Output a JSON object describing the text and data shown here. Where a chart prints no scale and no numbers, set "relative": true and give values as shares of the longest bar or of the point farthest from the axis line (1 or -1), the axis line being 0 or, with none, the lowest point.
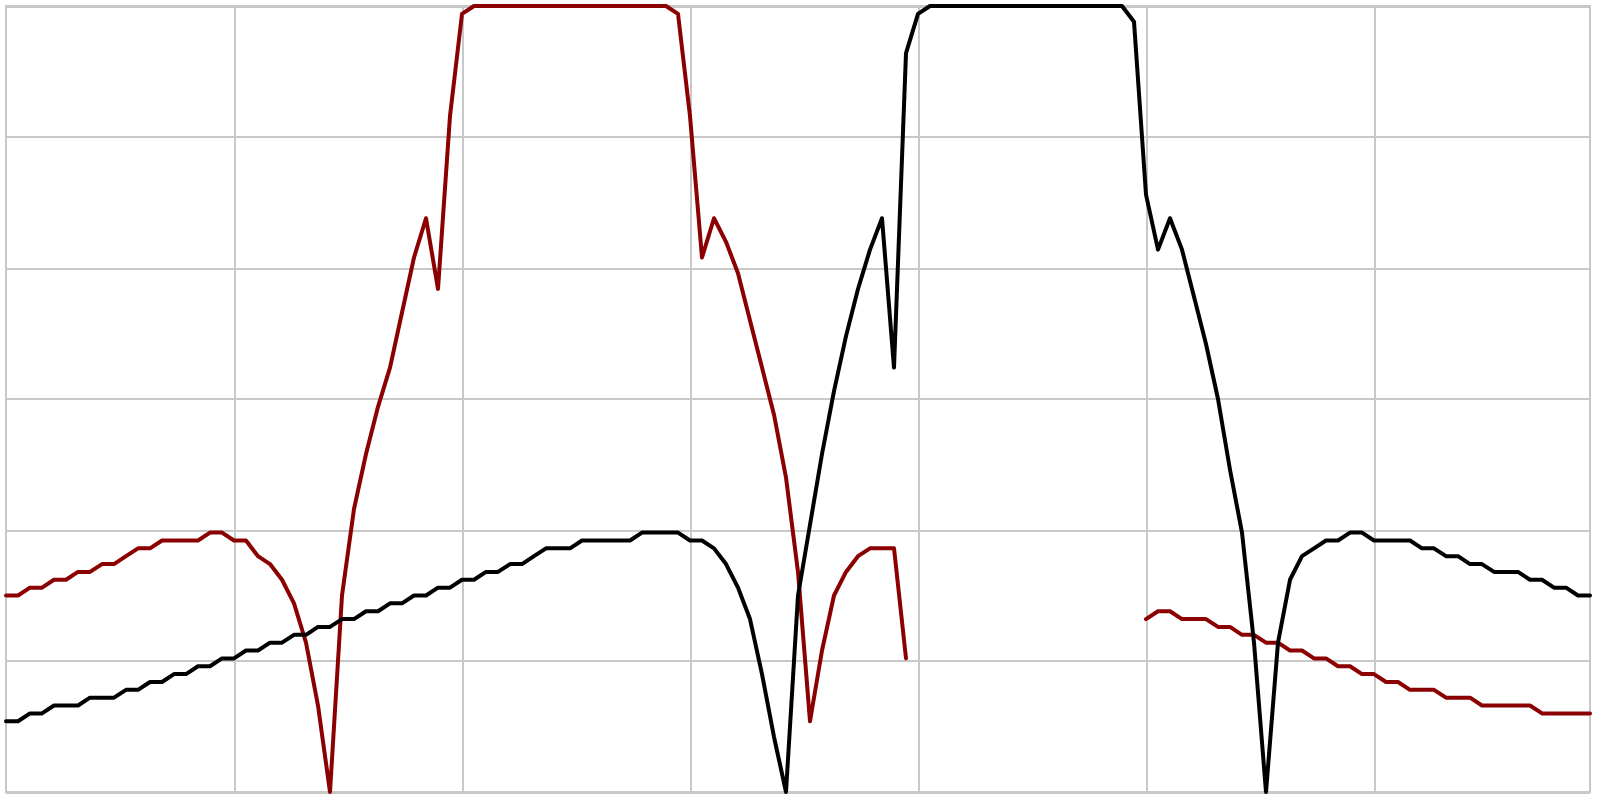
{
  "chart_data": {
    "type": "line",
    "relative": true,
    "grid": true,
    "line_style": "solid",
    "categories": [
      null,
      null,
      null,
      null,
      null,
      null,
      null,
      null,
      null,
      null,
      null,
      null,
      null,
      null,
      null,
      null,
      null,
      null,
      null,
      null,
      null,
      null,
      null,
      null,
      null,
      null,
      null,
      null,
      null,
      null,
      null,
      null,
      null,
      null,
      null,
      null,
      null,
      null,
      null,
      null,
      null,
      null,
      null,
      null,
      null,
      null,
      null,
      null,
      null,
      null,
      null,
      null,
      null,
      null,
      null,
      null,
      null,
      null,
      null,
      null,
      null,
      null,
      null,
      null,
      null,
      null,
      null,
      null,
      null,
      null,
      null,
      null,
      null,
      null,
      null,
      null,
      null,
      null,
      null,
      null,
      null,
      null,
      null,
      null,
      null,
      null,
      null,
      null,
      null,
      null,
      null,
      null,
      null,
      null,
      null,
      null,
      null,
      null,
      null,
      null,
      null,
      null,
      null,
      null,
      null,
      null,
      null,
      null,
      null,
      null,
      null,
      null,
      null,
      null,
      null,
      null,
      null,
      null,
      null,
      null,
      null,
      null,
      null,
      null,
      null,
      null,
      null,
      null,
      null,
      null,
      null,
      null,
      null
    ],
    "series": [
      {
        "color": "#8b0000",
        "values": [
          0.25,
          0.25,
          0.26,
          0.26,
          0.27,
          0.27,
          0.28,
          0.28,
          0.29,
          0.29,
          0.3,
          0.31,
          0.31,
          0.32,
          0.32,
          0.32,
          0.32,
          0.33,
          0.33,
          0.32,
          0.32,
          0.3,
          0.29,
          0.27,
          0.24,
          0.19,
          0.11,
          0,
          0.25,
          0.36,
          0.43,
          0.49,
          0.54,
          0.61,
          0.68,
          0.73,
          0.64,
          0.86,
          0.99,
          1.0,
          1.0,
          1.0,
          1.0,
          1.0,
          1.0,
          1.0,
          1.0,
          1.0,
          1.0,
          1.0,
          1.0,
          1.0,
          1.0,
          1.0,
          1.0,
          1.0,
          0.99,
          0.86,
          0.68,
          0.73,
          0.7,
          0.66,
          0.6,
          0.54,
          0.48,
          0.4,
          0.28,
          0.09,
          0.18,
          0.25,
          0.28,
          0.3,
          0.31,
          0.31,
          0.31,
          0.17,
          null,
          null,
          null,
          null,
          null,
          null,
          null,
          null,
          null,
          null,
          null,
          null,
          null,
          null,
          null,
          null,
          null,
          null,
          null,
          0.22,
          0.23,
          0.23,
          0.22,
          0.22,
          0.22,
          0.21,
          0.21,
          0.2,
          0.2,
          0.19,
          0.19,
          0.18,
          0.18,
          0.17,
          0.17,
          0.16,
          0.16,
          0.15,
          0.15,
          0.14,
          0.14,
          0.13,
          0.13,
          0.13,
          0.12,
          0.12,
          0.12,
          0.11,
          0.11,
          0.11,
          0.11,
          0.11,
          0.1,
          0.1,
          0.1,
          0.1,
          0.1
        ]
      },
      {
        "color": "#000000",
        "values": [
          0.09,
          0.09,
          0.1,
          0.1,
          0.11,
          0.11,
          0.11,
          0.12,
          0.12,
          0.12,
          0.13,
          0.13,
          0.14,
          0.14,
          0.15,
          0.15,
          0.16,
          0.16,
          0.17,
          0.17,
          0.18,
          0.18,
          0.19,
          0.19,
          0.2,
          0.2,
          0.21,
          0.21,
          0.22,
          0.22,
          0.23,
          0.23,
          0.24,
          0.24,
          0.25,
          0.25,
          0.26,
          0.26,
          0.27,
          0.27,
          0.28,
          0.28,
          0.29,
          0.29,
          0.3,
          0.31,
          0.31,
          0.31,
          0.32,
          0.32,
          0.32,
          0.32,
          0.32,
          0.33,
          0.33,
          0.33,
          0.33,
          0.32,
          0.32,
          0.31,
          0.29,
          0.26,
          0.22,
          0.15,
          0.07,
          0,
          0.25,
          0.34,
          0.43,
          0.51,
          0.58,
          0.64,
          0.69,
          0.73,
          0.54,
          0.94,
          0.99,
          1.0,
          1.0,
          1.0,
          1.0,
          1.0,
          1.0,
          1.0,
          1.0,
          1.0,
          1.0,
          1.0,
          1.0,
          1.0,
          1.0,
          1.0,
          1.0,
          1.0,
          0.98,
          0.76,
          0.69,
          0.73,
          0.69,
          0.63,
          0.57,
          0.5,
          0.41,
          0.33,
          0.19,
          0,
          0.19,
          0.27,
          0.3,
          0.31,
          0.32,
          0.32,
          0.33,
          0.33,
          0.32,
          0.32,
          0.32,
          0.32,
          0.31,
          0.31,
          0.3,
          0.3,
          0.29,
          0.29,
          0.28,
          0.28,
          0.28,
          0.27,
          0.27,
          0.26,
          0.26,
          0.25,
          0.25
        ]
      }
    ]
  }
}
